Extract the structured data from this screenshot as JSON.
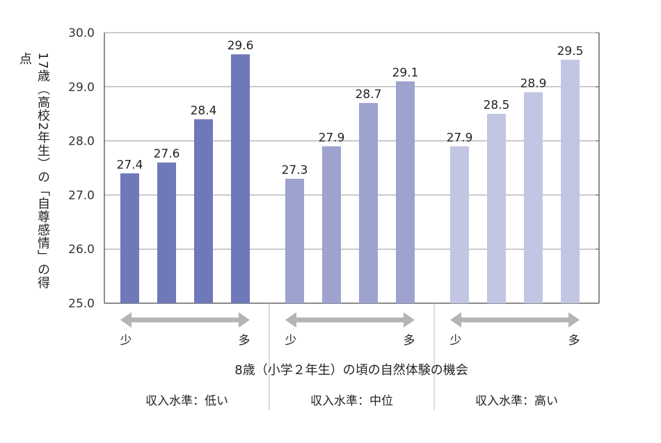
{
  "chart_data": {
    "type": "bar",
    "ylabel": "17歳（高校2年生）の「自尊感情」の得点",
    "xlabel": "8歳（小学２年生）の頃の自然体験の機会",
    "ylim": [
      25.0,
      30.0
    ],
    "yticks": [
      "25.0",
      "26.0",
      "27.0",
      "28.0",
      "29.0",
      "30.0"
    ],
    "grid": true,
    "groups": [
      {
        "label": "収入水準：低い",
        "low_label": "少",
        "high_label": "多",
        "color": "#6f78b8",
        "values": [
          27.4,
          27.6,
          28.4,
          29.6
        ]
      },
      {
        "label": "収入水準：中位",
        "low_label": "少",
        "high_label": "多",
        "color": "#9da2cf",
        "values": [
          27.3,
          27.9,
          28.7,
          29.1
        ]
      },
      {
        "label": "収入水準：高い",
        "low_label": "少",
        "high_label": "多",
        "color": "#c3c6e3",
        "values": [
          27.9,
          28.5,
          28.9,
          29.5
        ]
      }
    ]
  }
}
